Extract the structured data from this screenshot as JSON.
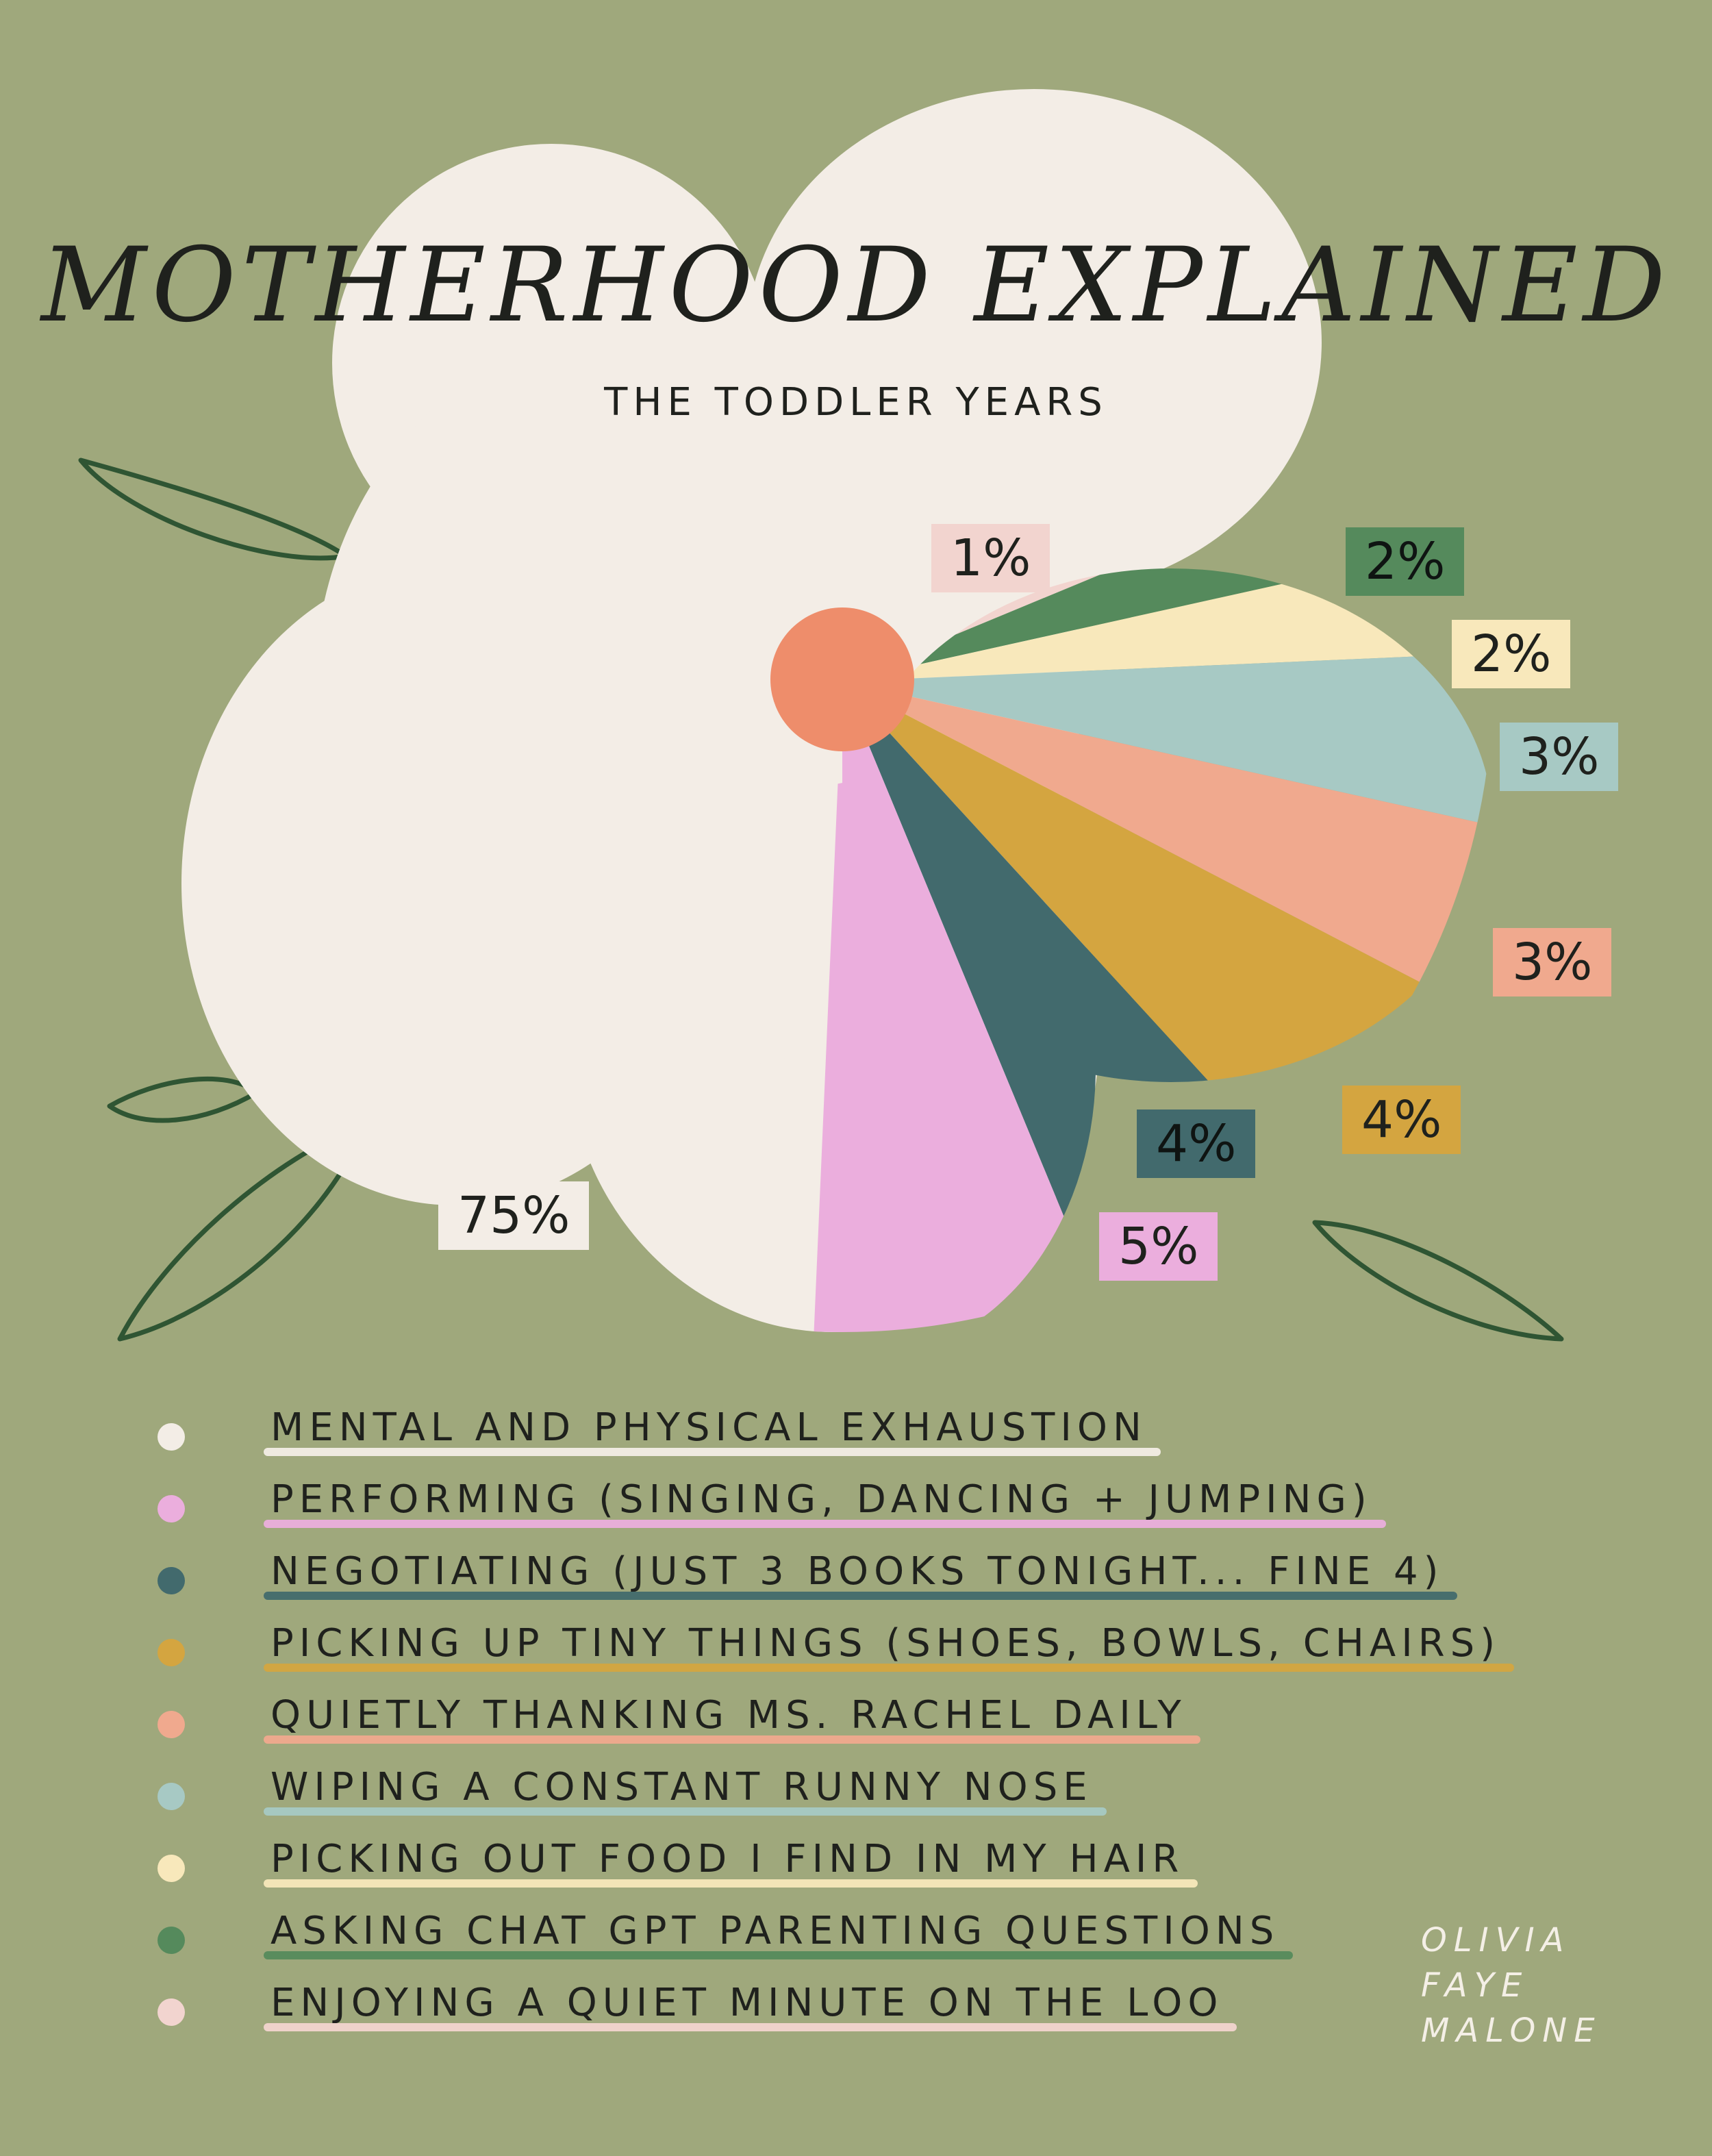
{
  "chart_data": {
    "type": "pie",
    "title": "MOTHERHOOD EXPLAINED",
    "subtitle": "THE TODDLER YEARS",
    "labels": [
      "MENTAL AND PHYSICAL EXHAUSTION",
      "PERFORMING (SINGING, DANCING + JUMPING)",
      "NEGOTIATING (JUST 3 BOOKS TONIGHT... FINE 4)",
      "PICKING UP TINY THINGS (SHOES, BOWLS, CHAIRS)",
      "QUIETLY THANKING MS. RACHEL DAILY",
      "WIPING A CONSTANT RUNNY NOSE",
      "PICKING OUT FOOD I FIND IN MY HAIR",
      "ASKING CHAT GPT PARENTING QUESTIONS",
      "ENJOYING A QUIET MINUTE ON THE LOO"
    ],
    "values": [
      75,
      5,
      4,
      4,
      3,
      3,
      2,
      2,
      1
    ],
    "value_labels": [
      "75%",
      "5%",
      "4%",
      "4%",
      "3%",
      "3%",
      "2%",
      "2%",
      "1%"
    ],
    "colors": [
      "#f3ede6",
      "#ebaedd",
      "#426a6d",
      "#d4a540",
      "#f0a98e",
      "#a7c9c4",
      "#f8e8bb",
      "#558a5c",
      "#f2d4cf"
    ],
    "label_colors": [
      "#f3ede6",
      "#ebaedd",
      "#426a6d",
      "#d4a540",
      "#f0a98e",
      "#a7c9c4",
      "#f8e8bb",
      "#558a5c",
      "#f2d4cf"
    ],
    "center_color": "#ee8d6b",
    "legend_position": "bottom"
  },
  "signature": [
    "OLIVIA",
    "FAYE",
    "MALONE"
  ]
}
